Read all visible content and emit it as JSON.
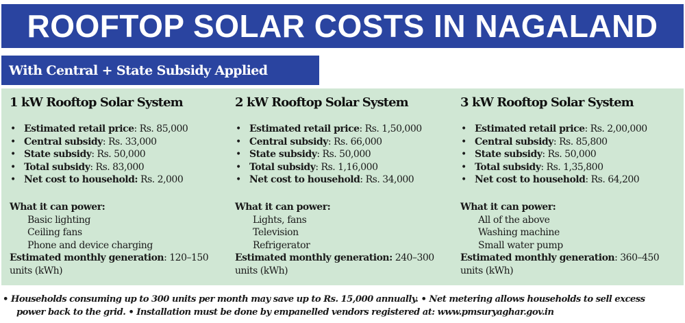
{
  "header": {
    "title": "ROOFTOP SOLAR COSTS IN NAGALAND",
    "subtitle": "With Central + State Subsidy Applied"
  },
  "colors": {
    "banner": "#2a44a0",
    "panel": "#d0e7d4",
    "text": "#1a1a1a"
  },
  "systems": [
    {
      "title": "1 kW Rooftop Solar System",
      "costs": [
        {
          "label": "Estimated retail price",
          "sep": ":",
          "value": " Rs. 85,000"
        },
        {
          "label": "Central subsidy",
          "sep": ":",
          "value": " Rs. 33,000"
        },
        {
          "label": "State subsidy",
          "sep": ":",
          "value": " Rs. 50,000"
        },
        {
          "label": "Total subsidy",
          "sep": ":",
          "value": " Rs. 83,000"
        },
        {
          "label": "Net cost to household:",
          "sep": "",
          "value": " Rs. 2,000"
        }
      ],
      "power_heading": "What it can power:",
      "power_items": [
        "Basic lighting",
        "Ceiling fans",
        "Phone and device charging"
      ],
      "generation_label": "Estimated monthly generation",
      "generation_value": ": 120–150 units (kWh)"
    },
    {
      "title": "2 kW Rooftop Solar System",
      "costs": [
        {
          "label": "Estimated retail price",
          "sep": ":",
          "value": " Rs. 1,50,000"
        },
        {
          "label": "Central subsidy",
          "sep": ":",
          "value": " Rs. 66,000"
        },
        {
          "label": "State subsidy",
          "sep": ":",
          "value": " Rs. 50,000"
        },
        {
          "label": "Total subsidy",
          "sep": ":",
          "value": " Rs. 1,16,000"
        },
        {
          "label": "Net cost to household",
          "sep": ":",
          "value": " Rs. 34,000"
        }
      ],
      "power_heading": "What it can power:",
      "power_items": [
        "Lights, fans",
        "Television",
        "Refrigerator"
      ],
      "generation_label": "Estimated monthly generation:",
      "generation_value": " 240–300 units (kWh)"
    },
    {
      "title": "3 kW Rooftop Solar System",
      "costs": [
        {
          "label": "Estimated retail price",
          "sep": ":",
          "value": " Rs. 2,00,000"
        },
        {
          "label": "Central subsidy",
          "sep": ":",
          "value": " Rs. 85,800"
        },
        {
          "label": "State subsidy",
          "sep": ":",
          "value": " Rs. 50,000"
        },
        {
          "label": "Total subsidy",
          "sep": ":",
          "value": " Rs. 1,35,800"
        },
        {
          "label": "Net cost to household",
          "sep": ":",
          "value": " Rs. 64,200"
        }
      ],
      "power_heading": "What it can power:",
      "power_items": [
        "All of the above",
        "Washing machine",
        "Small water pump"
      ],
      "generation_label": "Estimated monthly generation",
      "generation_value": ": 360–450 units (kWh)"
    }
  ],
  "bullet_glyph": "•",
  "footer": {
    "line1": "• Households consuming up to 300 units per month may save up to Rs. 15,000 annually. • Net metering allows households to sell excess",
    "line2": "power back to the grid. • Installation must be done by empanelled vendors registered at: www.pmsuryaghar.gov.in"
  }
}
